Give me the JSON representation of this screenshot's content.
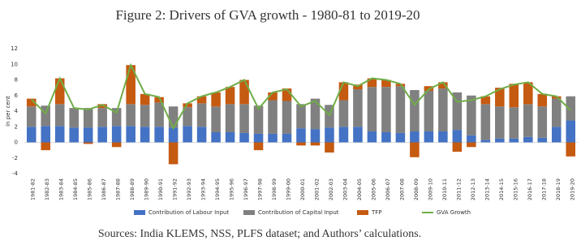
{
  "chart_data": {
    "type": "bar",
    "stacked": true,
    "title": "Figure 2: Drivers of GVA growth - 1980-81 to 2019-20",
    "y_label": "in per cent",
    "source": "Sources: India KLEMS, NSS, PLFS dataset; and Authors’ calculations.",
    "categories": [
      "1981-82",
      "1982-83",
      "1983-84",
      "1984-85",
      "1985-86",
      "1986-87",
      "1987-88",
      "1988-89",
      "1989-90",
      "1990-91",
      "1991-92",
      "1992-93",
      "1993-94",
      "1994-95",
      "1995-96",
      "1996-97",
      "1997-98",
      "1998-99",
      "1999-00",
      "2000-01",
      "2001-02",
      "2002-03",
      "2003-04",
      "2004-05",
      "2005-06",
      "2006-07",
      "2007-08",
      "2008-09",
      "2009-10",
      "2010-11",
      "2011-12",
      "2012-13",
      "2013-14",
      "2014-15",
      "2015-16",
      "2016-17",
      "2017-18",
      "2018-19",
      "2019-20"
    ],
    "series": [
      {
        "name": "Contribution of Labour Input",
        "color": "#4472c4",
        "values": [
          2.0,
          2.1,
          2.1,
          1.9,
          1.9,
          2.0,
          2.1,
          2.1,
          2.0,
          2.0,
          1.9,
          2.1,
          2.0,
          1.3,
          1.3,
          1.2,
          1.1,
          1.1,
          1.1,
          1.8,
          1.7,
          1.9,
          2.0,
          2.0,
          1.4,
          1.3,
          1.2,
          1.4,
          1.4,
          1.4,
          1.6,
          0.9,
          0.3,
          0.5,
          0.5,
          0.7,
          0.6,
          2.0,
          2.8
        ]
      },
      {
        "name": "Contribution of Capital Input",
        "color": "#808080",
        "values": [
          2.6,
          2.6,
          2.8,
          2.5,
          2.5,
          2.4,
          2.3,
          2.8,
          2.8,
          3.1,
          2.7,
          2.4,
          3.0,
          3.3,
          3.6,
          3.7,
          3.6,
          4.3,
          4.2,
          3.1,
          3.9,
          2.9,
          3.4,
          4.8,
          5.7,
          5.8,
          6.0,
          5.3,
          5.2,
          5.5,
          4.8,
          5.1,
          4.6,
          4.1,
          4.0,
          4.2,
          4.0,
          3.6,
          3.1
        ]
      },
      {
        "name": "TFP",
        "color": "#c55a11",
        "values": [
          1.0,
          -1.0,
          3.3,
          0.0,
          -0.2,
          0.5,
          -0.6,
          5.0,
          1.4,
          0.7,
          -2.8,
          0.5,
          0.9,
          1.8,
          2.2,
          3.1,
          -1.0,
          1.0,
          1.6,
          -0.4,
          -0.4,
          -1.3,
          2.3,
          0.6,
          1.1,
          0.9,
          0.3,
          -1.9,
          0.6,
          0.8,
          -1.2,
          -0.6,
          1.0,
          2.4,
          3.0,
          2.8,
          1.6,
          0.3,
          -1.8
        ]
      },
      {
        "name": "GVA Growth",
        "type": "line",
        "color": "#70ad47",
        "values": [
          5.5,
          3.7,
          8.2,
          4.4,
          4.2,
          4.8,
          3.8,
          9.9,
          6.2,
          5.8,
          1.8,
          5.0,
          5.9,
          6.4,
          7.1,
          8.0,
          4.3,
          6.4,
          6.8,
          4.6,
          5.3,
          3.5,
          7.7,
          7.2,
          8.2,
          8.0,
          7.5,
          4.8,
          6.8,
          7.7,
          5.2,
          5.4,
          5.9,
          6.8,
          7.4,
          7.7,
          6.2,
          5.9,
          4.1
        ]
      }
    ],
    "ylim": [
      -4,
      12
    ],
    "yticks": [
      -4,
      -2,
      0,
      2,
      4,
      6,
      8,
      10,
      12
    ],
    "grid": false,
    "legend": "bottom"
  }
}
